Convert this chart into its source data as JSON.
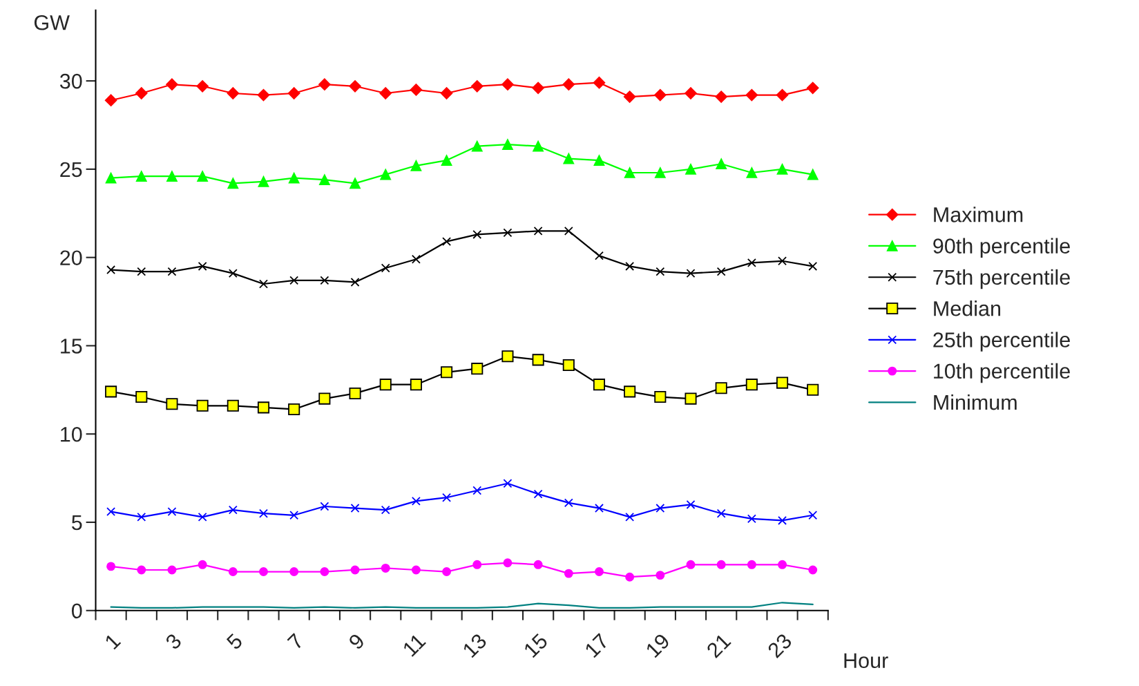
{
  "chart_data": {
    "type": "line",
    "xlabel": "Hour",
    "ylabel": "GW",
    "categories": [
      "1",
      null,
      "3",
      null,
      "5",
      null,
      "7",
      null,
      "9",
      null,
      "11",
      null,
      "13",
      null,
      "15",
      null,
      "17",
      null,
      "19",
      null,
      "21",
      null,
      "23",
      null
    ],
    "ylim": [
      0,
      34
    ],
    "yticks": [
      0,
      5,
      10,
      15,
      20,
      25,
      30
    ],
    "grid": false,
    "legend": "right",
    "series": [
      {
        "name": "Maximum",
        "color": "#ff0000",
        "marker": "diamond",
        "values": [
          28.9,
          29.3,
          29.8,
          29.7,
          29.3,
          29.2,
          29.3,
          29.8,
          29.7,
          29.3,
          29.5,
          29.3,
          29.7,
          29.8,
          29.6,
          29.8,
          29.9,
          29.1,
          29.2,
          29.3,
          29.1,
          29.2,
          29.2,
          29.6
        ]
      },
      {
        "name": "90th percentile",
        "color": "#00ff00",
        "marker": "triangle",
        "values": [
          24.5,
          24.6,
          24.6,
          24.6,
          24.2,
          24.3,
          24.5,
          24.4,
          24.2,
          24.7,
          25.2,
          25.5,
          26.3,
          26.4,
          26.3,
          25.6,
          25.5,
          24.8,
          24.8,
          25.0,
          25.3,
          24.8,
          25.0,
          24.7
        ]
      },
      {
        "name": "75th percentile",
        "color": "#000000",
        "marker": "cross",
        "values": [
          19.3,
          19.2,
          19.2,
          19.5,
          19.1,
          18.5,
          18.7,
          18.7,
          18.6,
          19.4,
          19.9,
          20.9,
          21.3,
          21.4,
          21.5,
          21.5,
          20.1,
          19.5,
          19.2,
          19.1,
          19.2,
          19.7,
          19.8,
          19.5
        ]
      },
      {
        "name": "Median",
        "color": "#ffff00",
        "marker": "square",
        "values": [
          12.4,
          12.1,
          11.7,
          11.6,
          11.6,
          11.5,
          11.4,
          12.0,
          12.3,
          12.8,
          12.8,
          13.5,
          13.7,
          14.4,
          14.2,
          13.9,
          12.8,
          12.4,
          12.1,
          12.0,
          12.6,
          12.8,
          12.9,
          12.5
        ]
      },
      {
        "name": "25th percentile",
        "color": "#0000ff",
        "marker": "cross",
        "values": [
          5.6,
          5.3,
          5.6,
          5.3,
          5.7,
          5.5,
          5.4,
          5.9,
          5.8,
          5.7,
          6.2,
          6.4,
          6.8,
          7.2,
          6.6,
          6.1,
          5.8,
          5.3,
          5.8,
          6.0,
          5.5,
          5.2,
          5.1,
          5.4
        ]
      },
      {
        "name": "10th percentile",
        "color": "#ff00ff",
        "marker": "circle",
        "values": [
          2.5,
          2.3,
          2.3,
          2.6,
          2.2,
          2.2,
          2.2,
          2.2,
          2.3,
          2.4,
          2.3,
          2.2,
          2.6,
          2.7,
          2.6,
          2.1,
          2.2,
          1.9,
          2.0,
          2.6,
          2.6,
          2.6,
          2.6,
          2.3
        ]
      },
      {
        "name": "Minimum",
        "color": "#008080",
        "values": [
          0.2,
          0.15,
          0.15,
          0.2,
          0.2,
          0.2,
          0.15,
          0.2,
          0.15,
          0.2,
          0.15,
          0.15,
          0.15,
          0.2,
          0.4,
          0.3,
          0.15,
          0.15,
          0.2,
          0.2,
          0.2,
          0.2,
          0.45,
          0.35
        ]
      }
    ]
  }
}
